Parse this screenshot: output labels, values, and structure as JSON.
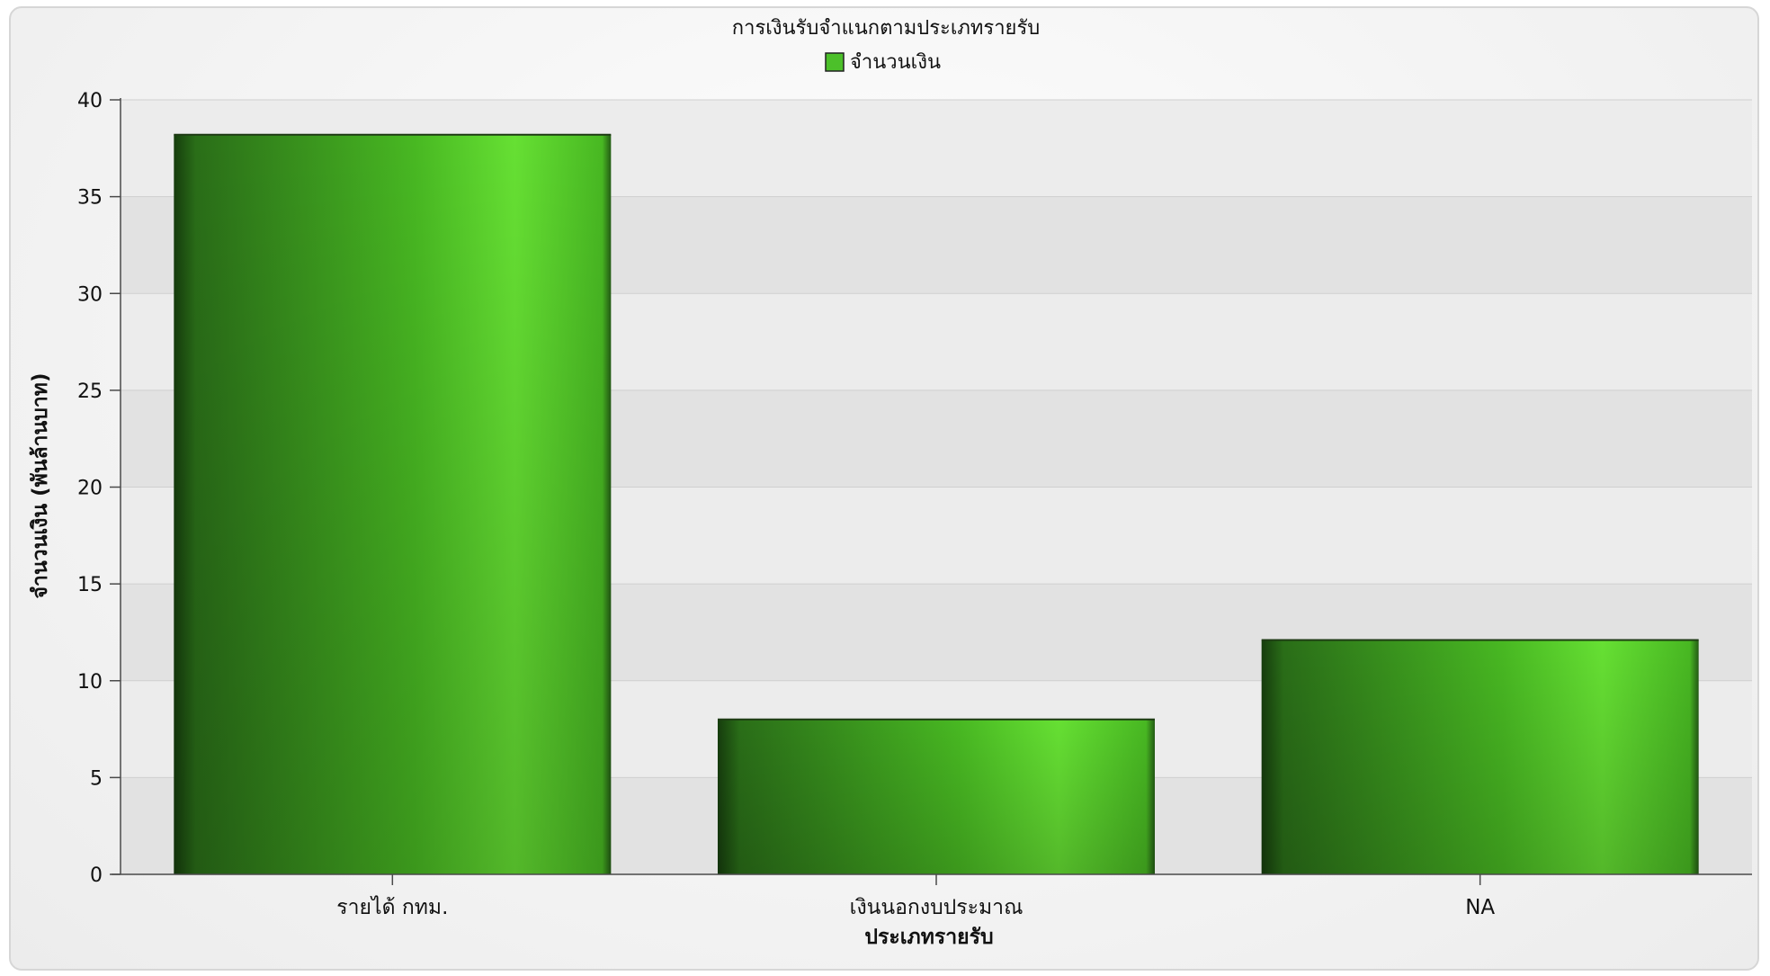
{
  "chart_data": {
    "type": "bar",
    "title": "การเงินรับจำแนกตามประเภทรายรับ",
    "legend": {
      "position": "top-center",
      "entries": [
        "จำนวนเงิน"
      ]
    },
    "xlabel": "ประเภทรายรับ",
    "ylabel": "จำนวนเงิน (พันล้านบาท)",
    "categories": [
      "รายได้ กทม.",
      "เงินนอกงบประมาณ",
      "NA"
    ],
    "series": [
      {
        "name": "จำนวนเงิน",
        "values": [
          38.2,
          8.0,
          12.1
        ]
      }
    ],
    "ylim": [
      0,
      40
    ],
    "yticks": [
      "0",
      "5",
      "10",
      "15",
      "20",
      "25",
      "30",
      "35",
      "40"
    ],
    "grid": "horizontal-bands",
    "colors": {
      "bar_light": "#66e033",
      "bar_mid": "#48b822",
      "bar_dark": "#163d0d",
      "legend_swatch": "#4cc02a",
      "band_dark": "#e2e2e2",
      "band_light": "#ececec"
    }
  }
}
